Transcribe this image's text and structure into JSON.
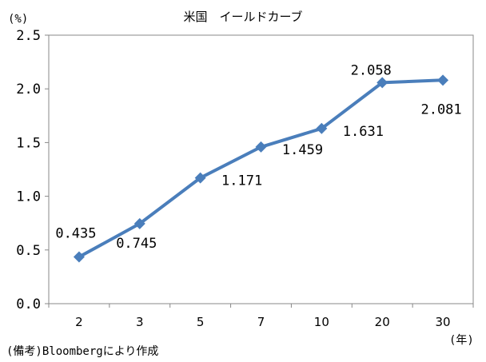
{
  "chart_data": {
    "type": "line",
    "title": "米国　イールドカーブ",
    "y_unit": "(%)",
    "x_unit": "(年)",
    "categories": [
      "2",
      "3",
      "5",
      "7",
      "10",
      "20",
      "30"
    ],
    "series": [
      {
        "values": [
          0.435,
          0.745,
          1.171,
          1.459,
          1.631,
          2.058,
          2.081
        ],
        "data_labels": [
          "0.435",
          "0.745",
          "1.171",
          "1.459",
          "1.631",
          "2.058",
          "2.081"
        ],
        "color": "#4a7ebb",
        "marker": "diamond"
      }
    ],
    "ylim": [
      0,
      2.5
    ],
    "yticks": [
      0.0,
      0.5,
      1.0,
      1.5,
      2.0,
      2.5
    ],
    "ytick_labels": [
      "0.0",
      "0.5",
      "1.0",
      "1.5",
      "2.0",
      "2.5"
    ],
    "grid": false,
    "legend": "none"
  },
  "source_note": "(備考)Bloombergにより作成",
  "colors": {
    "line": "#4a7ebb",
    "axis": "#888888",
    "text": "#000000"
  }
}
